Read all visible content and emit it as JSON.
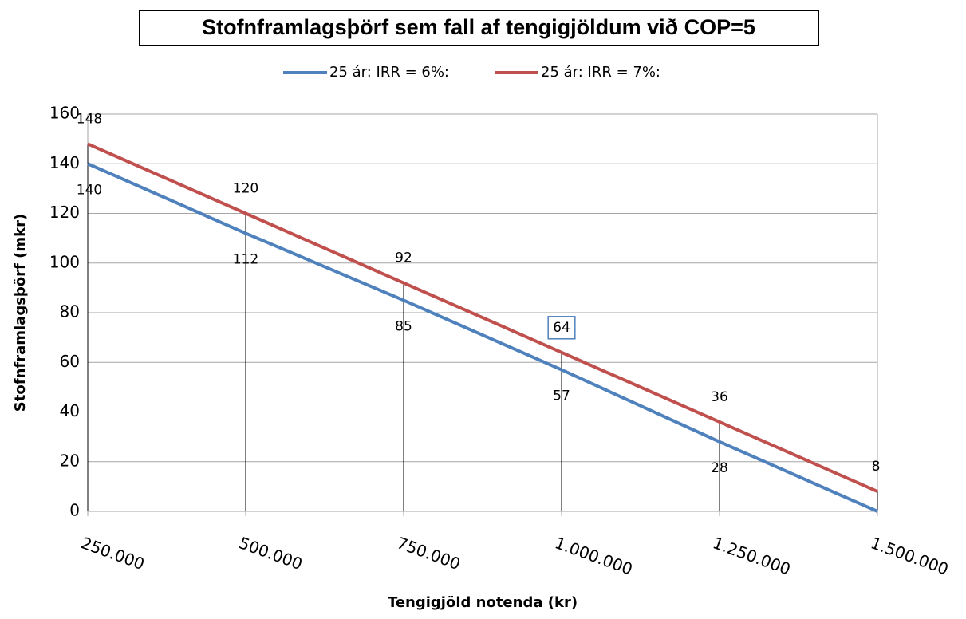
{
  "chart_data": {
    "type": "line",
    "title": "Stofnframlagsþörf  sem fall af tengigjöldum  við COP=5",
    "x_label": "Tengigjöld notenda (kr)",
    "y_label": "Stofnframlagsþörf (mkr)",
    "x": [
      250000,
      500000,
      750000,
      1000000,
      1250000,
      1500000
    ],
    "series": [
      {
        "name": "25 ár: IRR = 6%:",
        "color": "#4f81bd",
        "values": [
          140,
          112,
          85,
          57,
          28,
          0
        ],
        "value_labels": [
          "140",
          "112",
          "85",
          "57",
          "28",
          null
        ]
      },
      {
        "name": "25 ár: IRR = 7%:",
        "color": "#c0504d",
        "values": [
          148,
          120,
          92,
          64,
          36,
          8
        ]
      }
    ],
    "xlim": [
      250000,
      1500000
    ],
    "xticks": [
      {
        "value": 250000,
        "label": "250.000"
      },
      {
        "value": 500000,
        "label": "500.000"
      },
      {
        "value": 750000,
        "label": "750.000"
      },
      {
        "value": 1000000,
        "label": "1.000.000"
      },
      {
        "value": 1250000,
        "label": "1.250.000"
      },
      {
        "value": 1500000,
        "label": "1.500.000"
      }
    ],
    "ylim": [
      0,
      160
    ],
    "yticks": [
      0,
      20,
      40,
      60,
      80,
      100,
      120,
      140,
      160
    ],
    "grid": true,
    "legend": "top",
    "drop_lines": true
  }
}
